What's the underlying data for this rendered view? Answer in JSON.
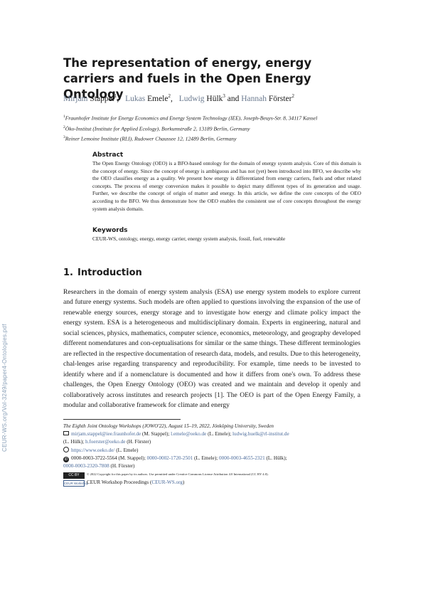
{
  "side_identifier": "CEUR-WS.org/Vol-3249/paper4-Ontologies.pdf",
  "title": "The representation of energy, energy carriers and fuels in the Open Energy Ontology",
  "authors": [
    {
      "first": "Mirjam",
      "last": "Stappel",
      "sup": "1"
    },
    {
      "first": "Lukas",
      "last": "Emele",
      "sup": "2"
    },
    {
      "first": "Ludwig",
      "last": "Hülk",
      "sup": "3"
    },
    {
      "first": "Hannah",
      "last": "Förster",
      "sup": "2"
    }
  ],
  "author_sep": ",",
  "author_and": "and",
  "affiliations": [
    {
      "sup": "1",
      "text": "Fraunhofer Institute for Energy Economics and Energy System Technology (IEE), Joseph-Beuys-Str. 8, 34117 Kassel"
    },
    {
      "sup": "2",
      "text": "Öko-Institut (Institute for Applied Ecology), Borkumstraße 2, 13189 Berlin, Germany"
    },
    {
      "sup": "3",
      "text": "Reiner Lemoine Institute (RLI), Rudower Chaussee 12, 12489 Berlin, Germany"
    }
  ],
  "abstract": {
    "heading": "Abstract",
    "text": "The Open Energy Ontology (OEO) is a BFO-based ontology for the domain of energy system analysis. Core of this domain is the concept of energy. Since the concept of energy is ambiguous and has not (yet) been introduced into BFO, we describe why the OEO classifies energy as a quality. We present how energy is differentiated from energy carriers, fuels and other related concepts. The process of energy conversion makes it possible to depict many different types of its generation and usage. Further, we describe the concept of origin of matter and energy. In this article, we define the core concepts of the OEO according to the BFO. We thus demonstrate how the OEO enables the consistent use of core concepts throughout the energy system analysis domain."
  },
  "keywords": {
    "heading": "Keywords",
    "text": "CEUR-WS, ontology, energy, energy carrier, energy system analysis, fossil, fuel, renewable"
  },
  "section": {
    "number": "1.",
    "title": "Introduction"
  },
  "body_text": "Researchers in the domain of energy system analysis (ESA) use energy system models to explore current and future energy systems. Such models are often applied to questions involving the expansion of the use of renewable energy sources, energy storage and to investigate how energy and climate policy impact the energy system. ESA is a heterogeneous and multidisciplinary domain. Experts in engineering, natural and social sciences, physics, mathematics, computer science, economics, meteorology, and geography developed different nomendatures and con-ceptualisations for similar or the same things. These different terminologies are reflected in the respective documentation of research data, models, and results. Due to this heterogeneity, chal-lenges arise regarding transparency and reproducibility. For example, time needs to be invested to identify where and if a nomenclature is documented and how it differs from one's own. To address these challenges, the Open Energy Ontology (OEO) was created and we maintain and develop it openly and collaboratively across institutes and research projects [1]. The OEO is part of the Open Energy Family, a modular and collaborative framework for climate and energy",
  "footnotes": {
    "conference": "The Eighth Joint Ontology Workshops (JOWO'22), August 15–19, 2022, Jönköping University, Sweden",
    "emails": [
      {
        "addr": "mirjam.stappel@iee.fraunhofer.de",
        "who": "(M. Stappel);"
      },
      {
        "addr": "l.emele@oeko.de",
        "who": "(L. Emele);"
      },
      {
        "addr": "ludwig.huelk@rl-institut.de",
        "who": ""
      }
    ],
    "emails_line2": [
      {
        "pre": "(L. Hülk);",
        "addr": "h.foerster@oeko.de",
        "who": "(H. Förster)"
      }
    ],
    "web": {
      "url": "https://www.oeko.de/",
      "who": "(L. Emele)"
    },
    "orcids": [
      {
        "id": "0000-0003-3722-5564",
        "who": "(M. Stappel);"
      },
      {
        "id": "0000-0002-1720-2501",
        "who": "(L. Emele);"
      },
      {
        "id": "0000-0003-4655-2321",
        "who": "(L. Hülk);"
      }
    ],
    "orcid_last": {
      "id": "0000-0003-2320-7808",
      "who": "(H. Förster)"
    },
    "orcid_badge": "iD",
    "cc_badge": "CC BY",
    "copyright": "© 2022 Copyright for this paper by its authors. Use permitted under Creative Commons License Attribution 4.0 International (CC BY 4.0).",
    "ceur_badge": "CEUR Workshop",
    "proceedings": "CEUR Workshop Proceedings",
    "proceedings_link": "CEUR-WS.org"
  }
}
